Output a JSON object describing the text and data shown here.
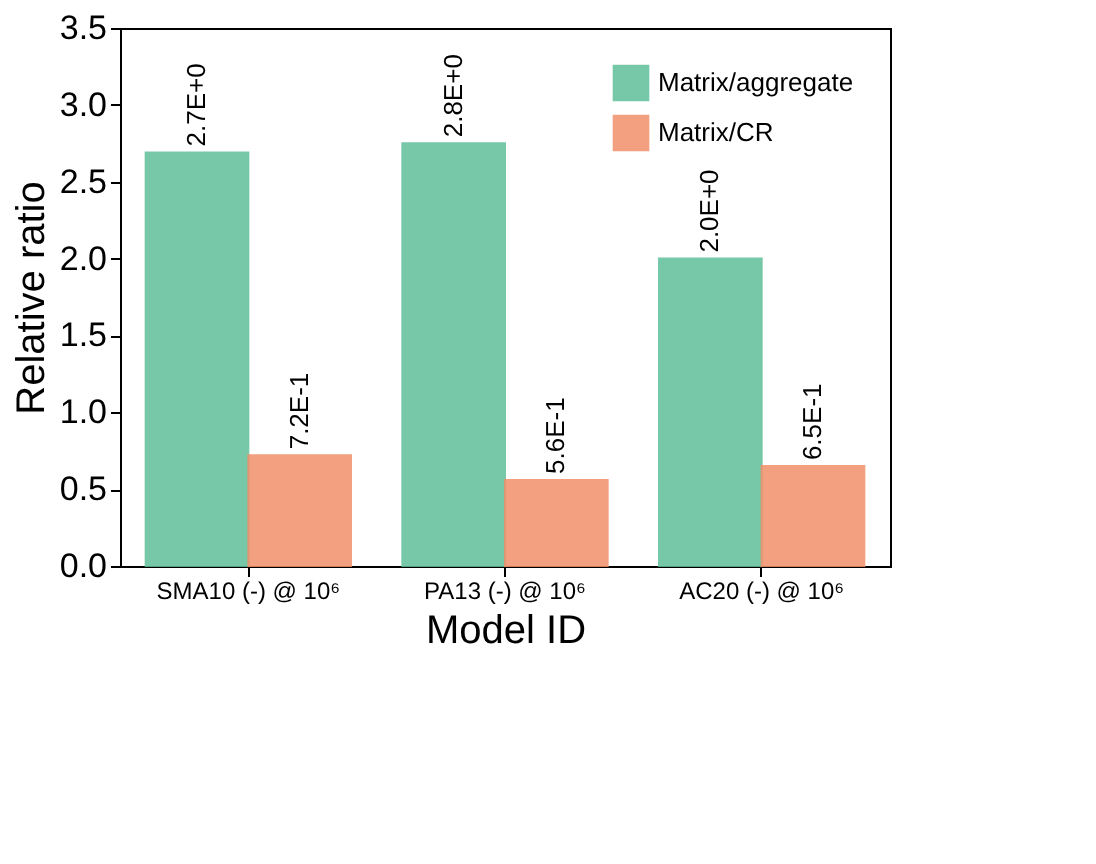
{
  "chart_data": {
    "type": "bar",
    "xlabel": "Model ID",
    "ylabel": "Relative ratio",
    "categories": [
      "SMA10 (-) @ 10⁶",
      "PA13 (-) @ 10⁶",
      "AC20 (-) @ 10⁶"
    ],
    "series": [
      {
        "name": "Matrix/aggregate",
        "color": "#5fbf9a",
        "values": [
          2.69,
          2.75,
          2.0
        ],
        "value_labels": [
          "2.7E+0",
          "2.8E+0",
          "2.0E+0"
        ]
      },
      {
        "name": "Matrix/CR",
        "color": "#f0906a",
        "values": [
          0.72,
          0.56,
          0.65
        ],
        "value_labels": [
          "7.2E-1",
          "5.6E-1",
          "6.5E-1"
        ]
      }
    ],
    "ylim": [
      0,
      3.5
    ],
    "yticks": [
      {
        "value": 0,
        "label": "0.0"
      },
      0.5,
      {
        "value": 1,
        "label": "1.0"
      },
      1.5,
      {
        "value": 2,
        "label": "2.0"
      },
      2.5,
      {
        "value": 3,
        "label": "3.0"
      },
      3.5
    ],
    "grid": false,
    "legend": "top right"
  }
}
